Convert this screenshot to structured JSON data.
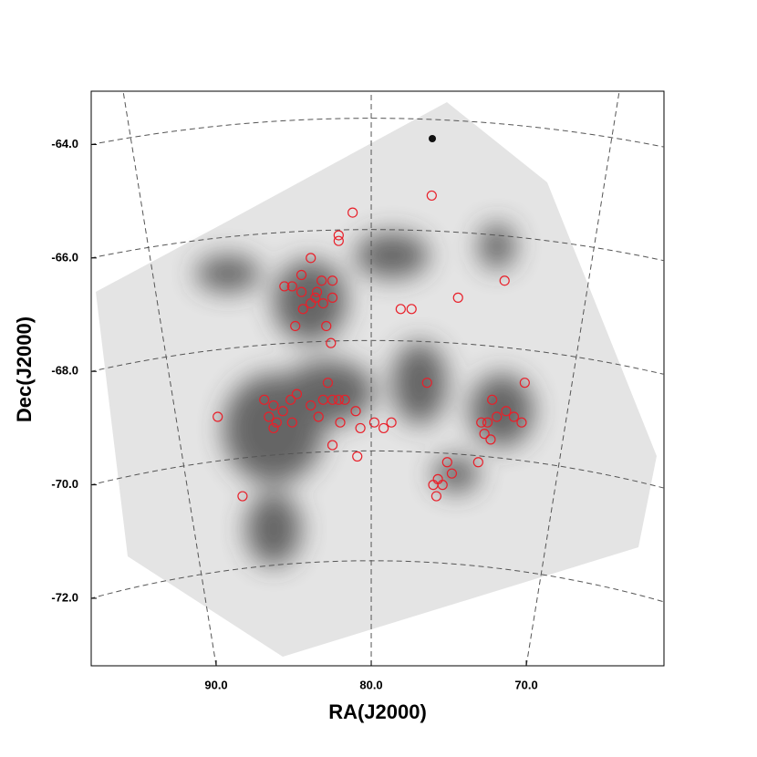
{
  "chart_data": {
    "type": "scatter",
    "x_label": "RA(J2000)",
    "y_label": "Dec(J2000)",
    "xlim": [
      98.06,
      61.12
    ],
    "ylim": [
      -73.19,
      -63.06
    ],
    "xticks": [
      {
        "value": 90,
        "label": "90.0"
      },
      {
        "value": 80,
        "label": "80.0"
      },
      {
        "value": 70,
        "label": "70.0"
      }
    ],
    "yticks": [
      {
        "value": -64,
        "label": "-64.0"
      },
      {
        "value": -66,
        "label": "-66.0"
      },
      {
        "value": -68,
        "label": "-68.0"
      },
      {
        "value": -70,
        "label": "-70.0"
      },
      {
        "value": -72,
        "label": "-72.0"
      }
    ],
    "grid": true,
    "color": "#e8202a",
    "x": [
      76.1,
      81.2,
      82.1,
      82.1,
      83.9,
      84.5,
      85.6,
      85.1,
      82.5,
      83.2,
      84.5,
      83.5,
      83.6,
      82.5,
      83.9,
      83.1,
      84.4,
      82.9,
      84.9,
      82.6,
      71.4,
      74.4,
      77.4,
      78.1,
      76.4,
      70.1,
      89.9,
      86.9,
      86.3,
      85.7,
      86.6,
      86.1,
      86.3,
      85.2,
      84.8,
      85.1,
      83.9,
      83.1,
      82.8,
      82.5,
      82.1,
      81.7,
      83.4,
      82.0,
      81.0,
      80.7,
      79.8,
      79.2,
      78.7,
      82.5,
      80.9,
      88.3,
      75.1,
      74.8,
      75.7,
      76.0,
      75.4,
      75.8,
      73.1,
      72.2,
      71.9,
      71.3,
      72.5,
      72.7,
      72.3,
      70.8,
      70.3,
      72.9
    ],
    "values": [
      -64.9,
      -65.2,
      -65.6,
      -65.7,
      -66.0,
      -66.3,
      -66.5,
      -66.5,
      -66.4,
      -66.4,
      -66.6,
      -66.6,
      -66.7,
      -66.7,
      -66.8,
      -66.8,
      -66.9,
      -67.2,
      -67.2,
      -67.5,
      -66.4,
      -66.7,
      -66.9,
      -66.9,
      -68.2,
      -68.2,
      -68.8,
      -68.5,
      -68.6,
      -68.7,
      -68.8,
      -68.9,
      -69.0,
      -68.5,
      -68.4,
      -68.9,
      -68.6,
      -68.5,
      -68.2,
      -68.5,
      -68.5,
      -68.5,
      -68.8,
      -68.9,
      -68.7,
      -69.0,
      -68.9,
      -69.0,
      -68.9,
      -69.3,
      -69.5,
      -70.2,
      -69.6,
      -69.8,
      -69.9,
      -70.0,
      -70.0,
      -70.2,
      -69.6,
      -68.5,
      -68.8,
      -68.7,
      -68.9,
      -69.1,
      -69.2,
      -68.8,
      -68.9,
      -68.9
    ]
  }
}
